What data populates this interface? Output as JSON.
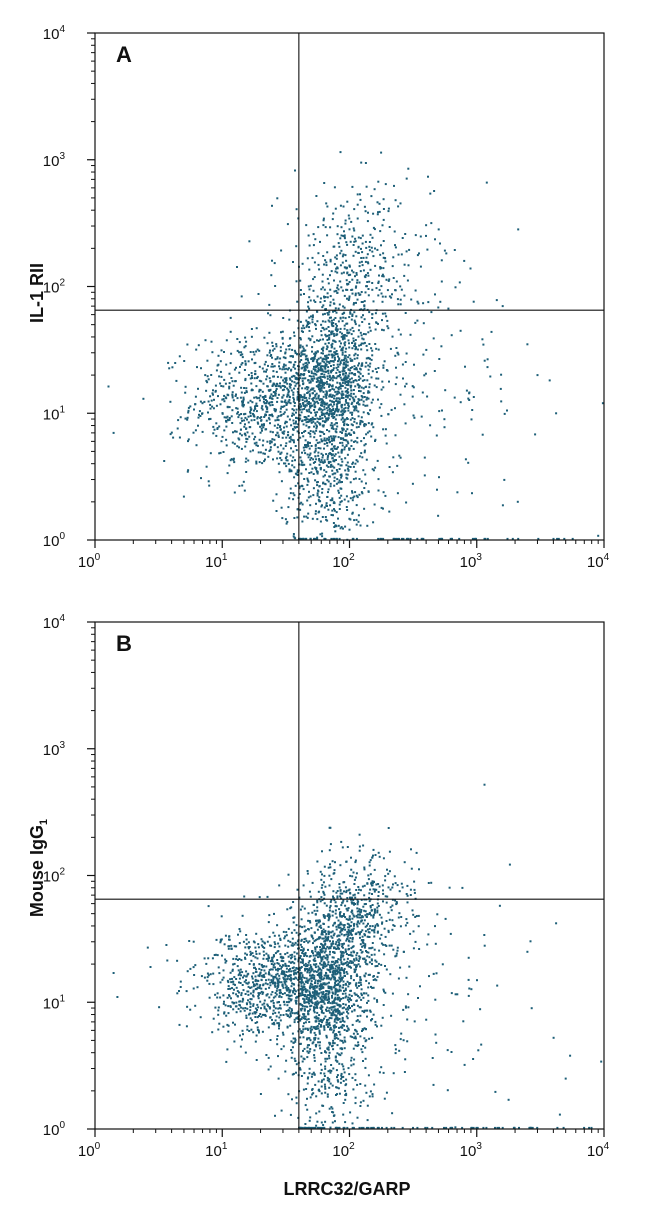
{
  "figure": {
    "point_color": "#1d5f78",
    "x_axis_title": "LRRC32/GARP"
  },
  "chart_data": [
    {
      "type": "scatter",
      "panel_label": "A",
      "xscale": "log",
      "yscale": "log",
      "xlim": [
        1,
        10000
      ],
      "ylim": [
        1,
        10000
      ],
      "xlabel": "LRRC32/GARP",
      "ylabel": "IL-1 RII",
      "x_ticks": [
        {
          "base": "10",
          "exp": "0"
        },
        {
          "base": "10",
          "exp": "1"
        },
        {
          "base": "10",
          "exp": "2"
        },
        {
          "base": "10",
          "exp": "3"
        },
        {
          "base": "10",
          "exp": "4"
        }
      ],
      "y_ticks": [
        {
          "base": "10",
          "exp": "0"
        },
        {
          "base": "10",
          "exp": "1"
        },
        {
          "base": "10",
          "exp": "2"
        },
        {
          "base": "10",
          "exp": "3"
        },
        {
          "base": "10",
          "exp": "4"
        }
      ],
      "quadrant_gates": {
        "x": 40,
        "y": 65
      },
      "clusters": [
        {
          "x_center": 25,
          "y_center": 12,
          "sx_decades": 0.32,
          "sy_decades": 0.28,
          "n": 950
        },
        {
          "x_center": 75,
          "y_center": 18,
          "sx_decades": 0.17,
          "sy_decades": 0.3,
          "n": 950
        },
        {
          "x_center": 70,
          "y_center": 3,
          "sx_decades": 0.18,
          "sy_decades": 0.3,
          "n": 420
        },
        {
          "x_center": 110,
          "y_center": 120,
          "sx_decades": 0.3,
          "sy_decades": 0.35,
          "n": 480
        },
        {
          "x_center": 320,
          "y_center": 15,
          "sx_decades": 0.45,
          "sy_decades": 0.45,
          "n": 140
        }
      ],
      "axis_floor_events": {
        "x_range": [
          40,
          9000
        ],
        "y": 1,
        "n": 70
      },
      "outliers": [
        [
          85,
          1150
        ],
        [
          290,
          850
        ],
        [
          1200,
          660
        ],
        [
          4200,
          10
        ],
        [
          9800,
          12
        ],
        [
          3000,
          20
        ],
        [
          2100,
          2
        ],
        [
          9000,
          1.08
        ],
        [
          1.4,
          7
        ],
        [
          2.4,
          13
        ],
        [
          3.5,
          4.2
        ],
        [
          5,
          2.2
        ],
        [
          7,
          12
        ],
        [
          2500,
          35
        ],
        [
          1600,
          70
        ]
      ]
    },
    {
      "type": "scatter",
      "panel_label": "B",
      "xscale": "log",
      "yscale": "log",
      "xlim": [
        1,
        10000
      ],
      "ylim": [
        1,
        10000
      ],
      "xlabel": "LRRC32/GARP",
      "ylabel": "Mouse IgG",
      "ylabel_subscript": "1",
      "x_ticks": [
        {
          "base": "10",
          "exp": "0"
        },
        {
          "base": "10",
          "exp": "1"
        },
        {
          "base": "10",
          "exp": "2"
        },
        {
          "base": "10",
          "exp": "3"
        },
        {
          "base": "10",
          "exp": "4"
        }
      ],
      "y_ticks": [
        {
          "base": "10",
          "exp": "0"
        },
        {
          "base": "10",
          "exp": "1"
        },
        {
          "base": "10",
          "exp": "2"
        },
        {
          "base": "10",
          "exp": "3"
        },
        {
          "base": "10",
          "exp": "4"
        }
      ],
      "quadrant_gates": {
        "x": 40,
        "y": 65
      },
      "clusters": [
        {
          "x_center": 25,
          "y_center": 14,
          "sx_decades": 0.3,
          "sy_decades": 0.22,
          "n": 950
        },
        {
          "x_center": 70,
          "y_center": 14,
          "sx_decades": 0.17,
          "sy_decades": 0.28,
          "n": 1000
        },
        {
          "x_center": 120,
          "y_center": 55,
          "sx_decades": 0.22,
          "sy_decades": 0.22,
          "n": 500
        },
        {
          "x_center": 70,
          "y_center": 2.6,
          "sx_decades": 0.2,
          "sy_decades": 0.28,
          "n": 260
        },
        {
          "x_center": 350,
          "y_center": 9,
          "sx_decades": 0.45,
          "sy_decades": 0.45,
          "n": 110
        }
      ],
      "axis_floor_events": {
        "x_range": [
          40,
          9000
        ],
        "y": 1,
        "n": 90
      },
      "outliers": [
        [
          1150,
          520
        ],
        [
          120,
          210
        ],
        [
          4200,
          42
        ],
        [
          2500,
          25
        ],
        [
          9500,
          3.4
        ],
        [
          1.4,
          17
        ],
        [
          1.5,
          11
        ],
        [
          2.6,
          27
        ],
        [
          4500,
          1.3
        ],
        [
          5000,
          2.5
        ]
      ]
    }
  ]
}
